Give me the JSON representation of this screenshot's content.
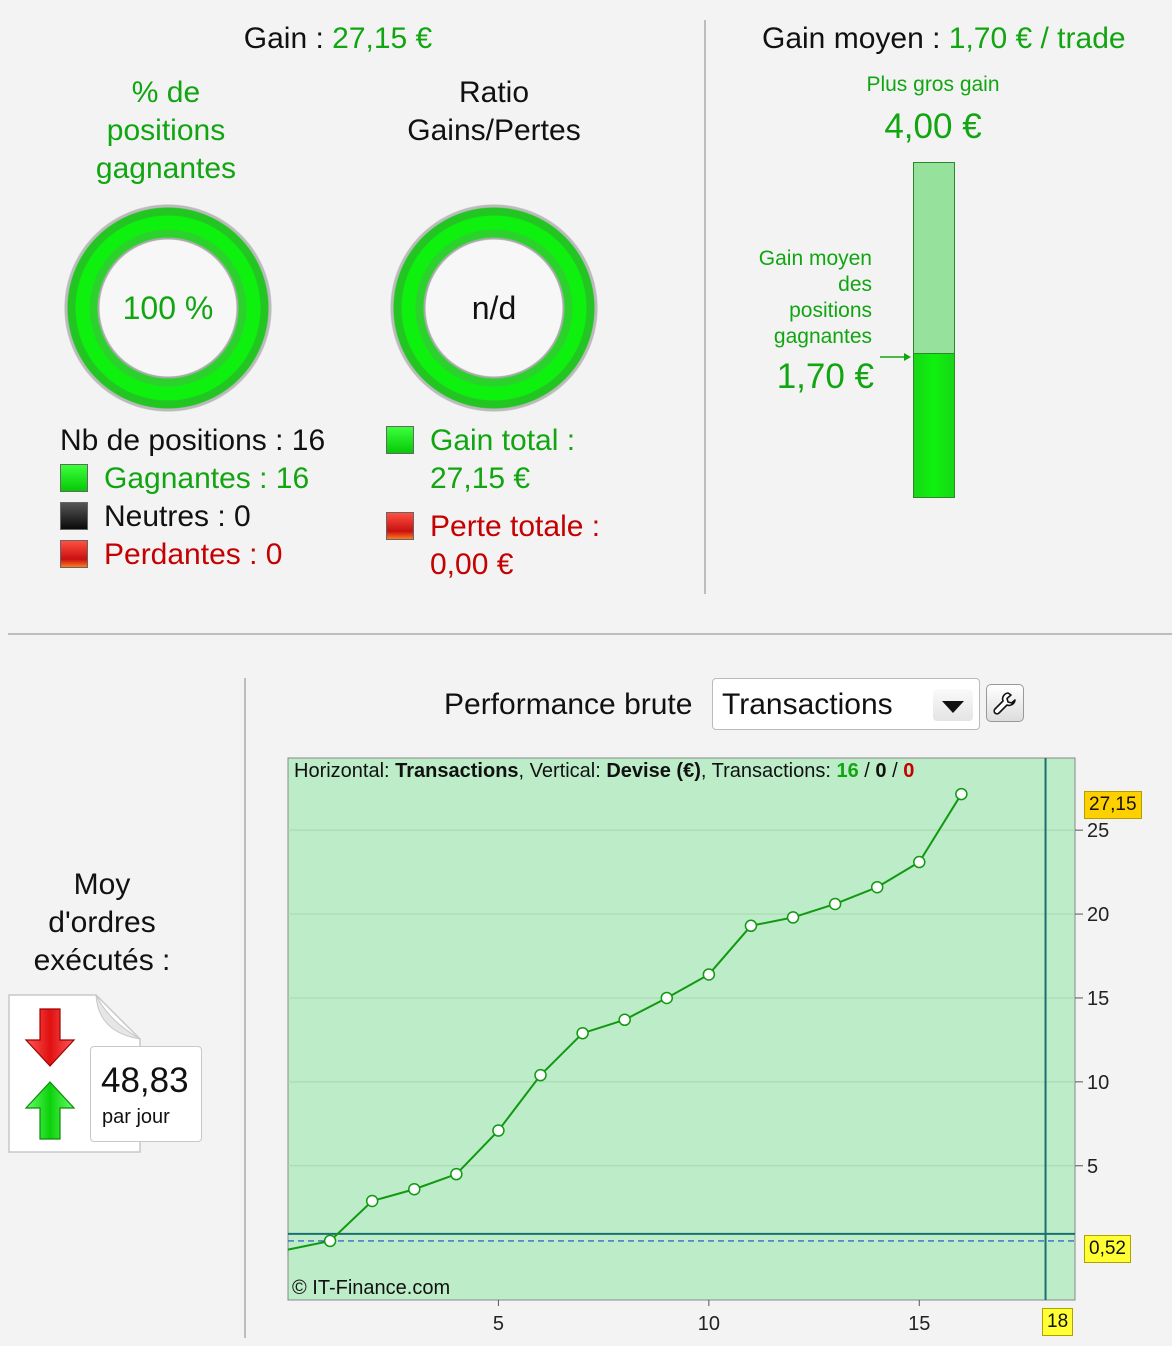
{
  "summary": {
    "gain_label": "Gain : ",
    "gain_value": "27,15 €",
    "win_pct_title_1": "% de",
    "win_pct_title_2": "positions",
    "win_pct_title_3": "gagnantes",
    "win_pct_value": "100 %",
    "win_pct_fraction": 1.0,
    "ratio_title_1": "Ratio",
    "ratio_title_2": "Gains/Pertes",
    "ratio_value": "n/d",
    "nb_positions": "Nb de positions : 16",
    "winners": "Gagnantes : 16",
    "neutral": "Neutres : 0",
    "losers": "Perdantes : 0",
    "total_gain_label": "Gain total :",
    "total_gain_value": "27,15 €",
    "total_loss_label": "Perte totale :",
    "total_loss_value": "0,00 €"
  },
  "average": {
    "label": "Gain moyen : ",
    "value": "1,70 € / trade",
    "biggest_gain_label": "Plus gros gain",
    "biggest_gain_value": "4,00 €",
    "avg_win_label_1": "Gain moyen",
    "avg_win_label_2": "des",
    "avg_win_label_3": "positions",
    "avg_win_label_4": "gagnantes",
    "avg_win_value": "1,70 €",
    "bar_max": 4.0,
    "bar_level": 1.7
  },
  "orders": {
    "title_1": "Moy",
    "title_2": "d'ordres",
    "title_3": "exécutés :",
    "value": "48,83",
    "unit": "par jour",
    "down_arrow_icon": "red-down-arrow-icon",
    "up_arrow_icon": "green-up-arrow-icon"
  },
  "performance": {
    "title": "Performance brute",
    "select_value": "Transactions",
    "tool_icon": "wrench-icon",
    "info_h_label": "Horizontal: ",
    "info_h_value": "Transactions",
    "info_v_label": ", Vertical: ",
    "info_v_value": "Devise (€)",
    "info_t_label": ", Transactions: ",
    "info_t_win": "16",
    "info_sep": " / ",
    "info_t_neutral": "0",
    "info_t_loss": "0",
    "copyright": "© IT-Finance.com",
    "last_value_tag": "27,15",
    "baseline_tag": "0,52",
    "cursor_tag": "18"
  },
  "chart_data": {
    "type": "line",
    "x": [
      0,
      1,
      2,
      3,
      4,
      5,
      6,
      7,
      8,
      9,
      10,
      11,
      12,
      13,
      14,
      15,
      16
    ],
    "values": [
      0,
      0.52,
      2.9,
      3.6,
      4.5,
      7.1,
      10.4,
      12.9,
      13.7,
      15.0,
      16.4,
      19.3,
      19.8,
      20.6,
      21.6,
      23.1,
      27.15
    ],
    "xlim": [
      0,
      18.7
    ],
    "ylim": [
      -3.0,
      29.3
    ],
    "x_ticks": [
      5,
      10,
      15
    ],
    "x_tick_labels": [
      "5",
      "10",
      "15"
    ],
    "y_ticks": [
      5,
      10,
      15,
      20,
      25
    ],
    "y_tick_labels": [
      "5",
      "10",
      "15",
      "20",
      "25"
    ],
    "baseline": 0.52,
    "cursor_x": 18,
    "colors": {
      "line": "#119911",
      "fill": "#bdecc8",
      "point": "#ffffff",
      "cursor": "#1a7070",
      "baseline": "#1a4fd0"
    },
    "grid": true
  }
}
